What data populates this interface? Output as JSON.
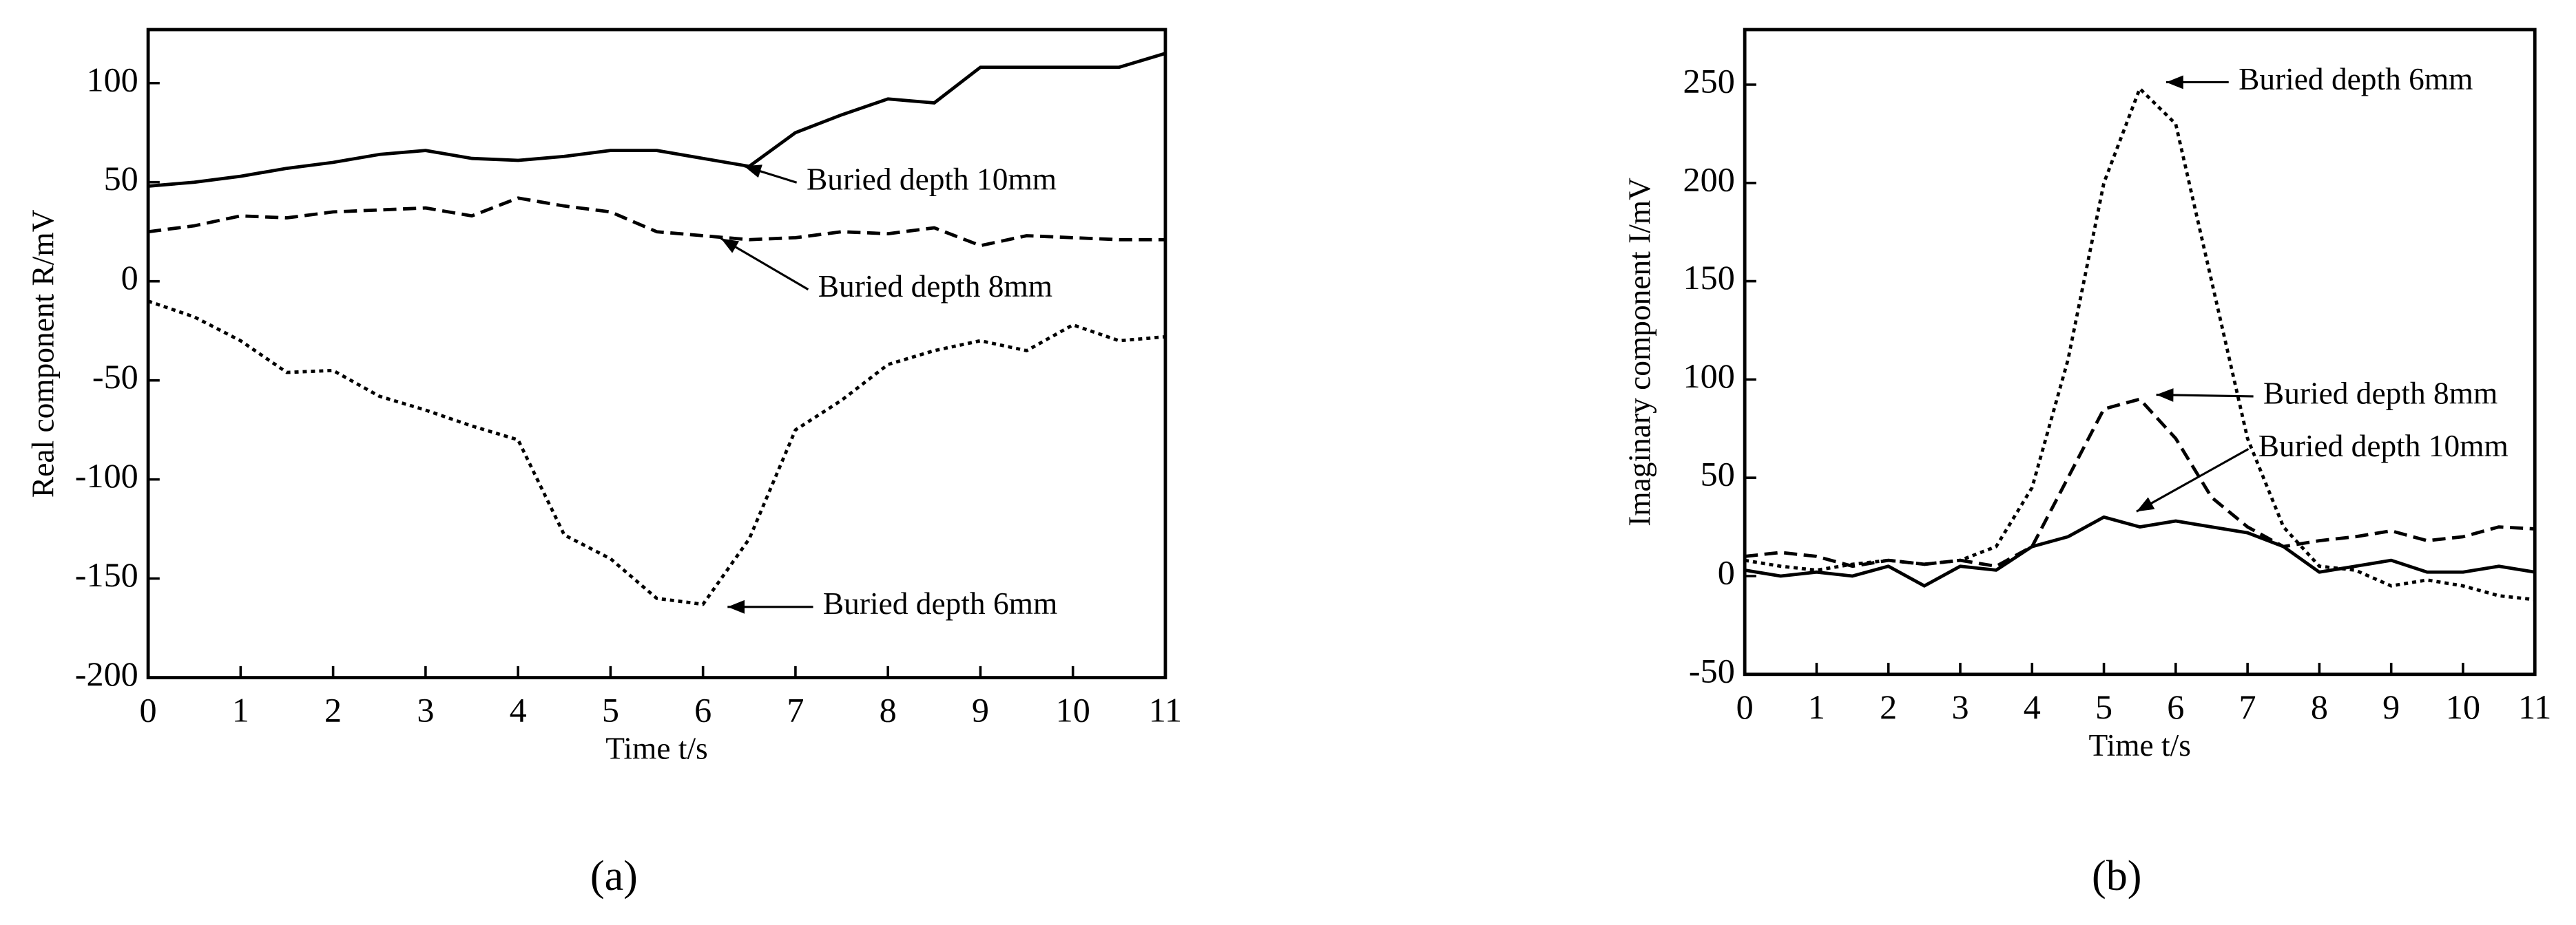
{
  "chart_data": [
    {
      "type": "line",
      "caption": "(a)",
      "x_label": "Time t/s",
      "y_label": "Real component R/mV",
      "x": [
        0,
        0.5,
        1,
        1.5,
        2,
        2.5,
        3,
        3.5,
        4,
        4.5,
        5,
        5.5,
        6,
        6.5,
        7,
        7.5,
        8,
        8.5,
        9,
        9.5,
        10,
        10.5,
        11
      ],
      "xlim": [
        0,
        11
      ],
      "xticks": [
        0,
        1,
        2,
        3,
        4,
        5,
        6,
        7,
        8,
        9,
        10,
        11
      ],
      "ylim": [
        -200,
        127
      ],
      "yticks": [
        -200,
        -150,
        -100,
        -50,
        0,
        50,
        100
      ],
      "series": [
        {
          "name": "Buried depth 10mm",
          "color": "#000000",
          "style": "solid",
          "values": [
            48,
            50,
            53,
            57,
            60,
            64,
            66,
            62,
            61,
            63,
            66,
            66,
            62,
            58,
            75,
            84,
            92,
            90,
            108,
            108,
            108,
            108,
            115
          ]
        },
        {
          "name": "Buried depth 8mm",
          "color": "#000000",
          "style": "dashed",
          "values": [
            25,
            28,
            33,
            32,
            35,
            36,
            37,
            33,
            42,
            38,
            35,
            25,
            23,
            21,
            22,
            25,
            24,
            27,
            18,
            23,
            22,
            21,
            21
          ]
        },
        {
          "name": "Buried depth 6mm",
          "color": "#000000",
          "style": "dotted",
          "values": [
            -10,
            -18,
            -30,
            -46,
            -45,
            -58,
            -65,
            -73,
            -80,
            -128,
            -140,
            -160,
            -163,
            -130,
            -75,
            -60,
            -42,
            -35,
            -30,
            -35,
            -22,
            -30,
            -28
          ]
        }
      ]
    },
    {
      "type": "line",
      "caption": "(b)",
      "x_label": "Time t/s",
      "y_label": "Imaginary component I/mV",
      "x": [
        0,
        0.5,
        1,
        1.5,
        2,
        2.5,
        3,
        3.5,
        4,
        4.5,
        5,
        5.5,
        6,
        6.5,
        7,
        7.5,
        8,
        8.5,
        9,
        9.5,
        10,
        10.5,
        11
      ],
      "xlim": [
        0,
        11
      ],
      "xticks": [
        0,
        1,
        2,
        3,
        4,
        5,
        6,
        7,
        8,
        9,
        10,
        11
      ],
      "ylim": [
        -50,
        278
      ],
      "yticks": [
        -50,
        0,
        50,
        100,
        150,
        200,
        250
      ],
      "series": [
        {
          "name": "Buried depth 6mm",
          "color": "#000000",
          "style": "dotted",
          "values": [
            8,
            5,
            3,
            6,
            8,
            6,
            8,
            15,
            45,
            110,
            200,
            248,
            230,
            150,
            70,
            25,
            5,
            3,
            -5,
            -2,
            -5,
            -10,
            -12
          ]
        },
        {
          "name": "Buried depth 8mm",
          "color": "#000000",
          "style": "dashed",
          "values": [
            10,
            12,
            10,
            5,
            8,
            6,
            8,
            5,
            15,
            50,
            85,
            90,
            70,
            40,
            25,
            15,
            18,
            20,
            23,
            18,
            20,
            25,
            24
          ]
        },
        {
          "name": "Buried depth 10mm",
          "color": "#000000",
          "style": "solid",
          "values": [
            3,
            0,
            2,
            0,
            5,
            -5,
            5,
            3,
            15,
            20,
            30,
            25,
            28,
            25,
            22,
            15,
            2,
            5,
            8,
            2,
            2,
            5,
            2
          ]
        }
      ]
    }
  ]
}
